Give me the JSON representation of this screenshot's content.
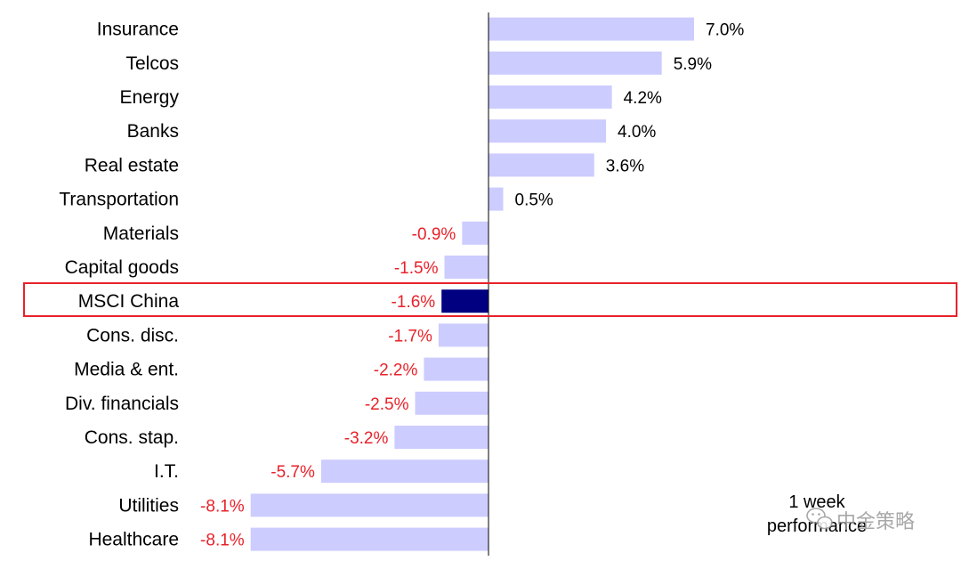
{
  "chart_data": {
    "type": "bar",
    "orientation": "horizontal",
    "categories": [
      "Insurance",
      "Telcos",
      "Energy",
      "Banks",
      "Real estate",
      "Transportation",
      "Materials",
      "Capital goods",
      "MSCI China",
      "Cons. disc.",
      "Media & ent.",
      "Div. financials",
      "Cons. stap.",
      "I.T.",
      "Utilities",
      "Healthcare"
    ],
    "values": [
      7.0,
      5.9,
      4.2,
      4.0,
      3.6,
      0.5,
      -0.9,
      -1.5,
      -1.6,
      -1.7,
      -2.2,
      -2.5,
      -3.2,
      -5.7,
      -8.1,
      -8.1
    ],
    "value_labels": [
      "7.0%",
      "5.9%",
      "4.2%",
      "4.0%",
      "3.6%",
      "0.5%",
      "-0.9%",
      "-1.5%",
      "-1.6%",
      "-1.7%",
      "-2.2%",
      "-2.5%",
      "-3.2%",
      "-5.7%",
      "-8.1%",
      "-8.1%"
    ],
    "xlim": [
      -8.1,
      7.0
    ],
    "highlight_category": "MSCI China",
    "annotation": [
      "1 week",
      "performance"
    ],
    "grid": false
  },
  "colors": {
    "bar": "#ccccff",
    "highlight_bar": "#000080",
    "highlight_box": "#e8222a",
    "positive_label": "#000000",
    "negative_label": "#e8222a",
    "axis": "#000000"
  },
  "watermark": {
    "icon": "wechat-icon",
    "text": "中金策略"
  }
}
